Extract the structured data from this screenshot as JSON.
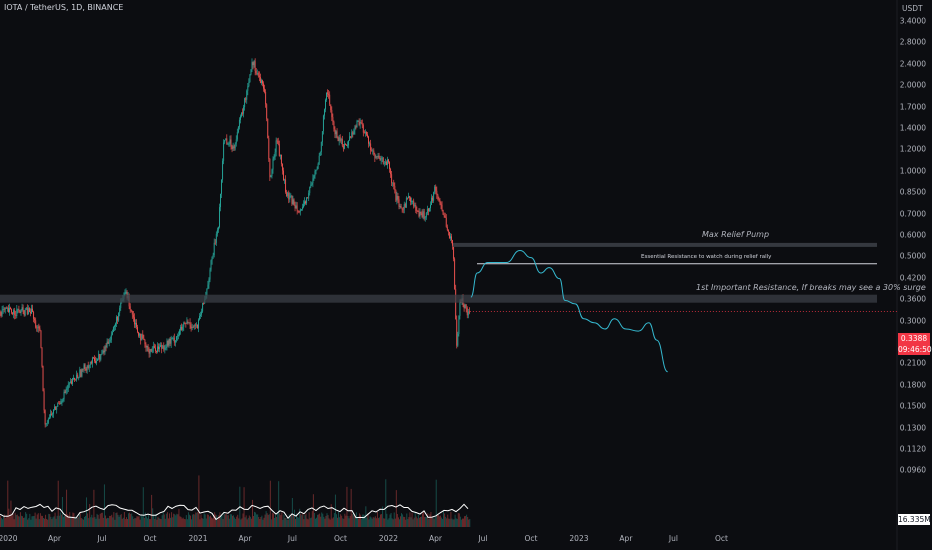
{
  "header": {
    "ticker": "IOTA / TetherUS, 1D, BINANCE"
  },
  "price_axis": {
    "unit": "USDT",
    "ticks": [
      "3.4000",
      "2.8000",
      "2.4000",
      "2.0000",
      "1.7000",
      "1.4000",
      "1.2000",
      "1.0000",
      "0.8500",
      "0.7000",
      "0.6000",
      "0.5000",
      "0.4200",
      "0.3600",
      "0.3000",
      "0.2500",
      "0.2100",
      "0.1800",
      "0.1500",
      "0.1300",
      "0.1120",
      "0.0960"
    ]
  },
  "time_axis": {
    "ticks": [
      "2020",
      "Apr",
      "Jul",
      "Oct",
      "2021",
      "Apr",
      "Jul",
      "Oct",
      "2022",
      "Apr",
      "Jul",
      "Oct",
      "2023",
      "Apr",
      "Jul",
      "Oct"
    ]
  },
  "current_price": {
    "value": "0.3388",
    "countdown": "09:46:50"
  },
  "volume": {
    "value": "16.335M"
  },
  "annotations": {
    "max_relief": "Max Relief Pump",
    "essential": "Essential Resistance to watch during relief rally",
    "first_resistance": "1st Important Resistance, If breaks may see a 30% surge"
  },
  "colors": {
    "background": "#0c0d11",
    "up": "#26a69a",
    "down": "#ef5350",
    "projection": "#35b8cf",
    "badge": "#f23645",
    "volume_ma": "#ffffff"
  },
  "chart_data": {
    "type": "candlestick",
    "scale": "log",
    "xlabel": "",
    "ylabel": "",
    "ylim": [
      0.096,
      3.4
    ],
    "price_path": [
      {
        "x": "2020-02-20",
        "y": 0.32
      },
      {
        "x": "2020-03-05",
        "y": 0.28
      },
      {
        "x": "2020-03-13",
        "y": 0.14
      },
      {
        "x": "2020-04-01",
        "y": 0.155
      },
      {
        "x": "2020-05-01",
        "y": 0.19
      },
      {
        "x": "2020-06-01",
        "y": 0.22
      },
      {
        "x": "2020-07-01",
        "y": 0.24
      },
      {
        "x": "2020-07-25",
        "y": 0.3
      },
      {
        "x": "2020-08-15",
        "y": 0.4
      },
      {
        "x": "2020-09-05",
        "y": 0.3
      },
      {
        "x": "2020-09-25",
        "y": 0.25
      },
      {
        "x": "2020-10-20",
        "y": 0.255
      },
      {
        "x": "2020-11-15",
        "y": 0.27
      },
      {
        "x": "2020-12-10",
        "y": 0.31
      },
      {
        "x": "2020-12-31",
        "y": 0.3
      },
      {
        "x": "2021-01-15",
        "y": 0.38
      },
      {
        "x": "2021-02-10",
        "y": 0.7
      },
      {
        "x": "2021-02-20",
        "y": 1.35
      },
      {
        "x": "2021-03-10",
        "y": 1.25
      },
      {
        "x": "2021-04-01",
        "y": 1.8
      },
      {
        "x": "2021-04-15",
        "y": 2.5
      },
      {
        "x": "2021-05-01",
        "y": 2.1
      },
      {
        "x": "2021-05-10",
        "y": 1.9
      },
      {
        "x": "2021-05-19",
        "y": 0.95
      },
      {
        "x": "2021-06-01",
        "y": 1.35
      },
      {
        "x": "2021-06-20",
        "y": 0.85
      },
      {
        "x": "2021-07-20",
        "y": 0.75
      },
      {
        "x": "2021-08-20",
        "y": 1.1
      },
      {
        "x": "2021-09-05",
        "y": 2.0
      },
      {
        "x": "2021-09-20",
        "y": 1.4
      },
      {
        "x": "2021-10-10",
        "y": 1.25
      },
      {
        "x": "2021-11-05",
        "y": 1.55
      },
      {
        "x": "2021-11-25",
        "y": 1.3
      },
      {
        "x": "2021-12-05",
        "y": 1.15
      },
      {
        "x": "2021-12-31",
        "y": 1.1
      },
      {
        "x": "2022-01-10",
        "y": 0.9
      },
      {
        "x": "2022-01-24",
        "y": 0.75
      },
      {
        "x": "2022-02-10",
        "y": 0.85
      },
      {
        "x": "2022-03-01",
        "y": 0.72
      },
      {
        "x": "2022-03-15",
        "y": 0.74
      },
      {
        "x": "2022-04-01",
        "y": 0.9
      },
      {
        "x": "2022-04-20",
        "y": 0.7
      },
      {
        "x": "2022-05-05",
        "y": 0.55
      },
      {
        "x": "2022-05-12",
        "y": 0.26
      },
      {
        "x": "2022-05-18",
        "y": 0.38
      },
      {
        "x": "2022-06-01",
        "y": 0.34
      },
      {
        "x": "2022-06-06",
        "y": 0.3388
      }
    ],
    "levels": [
      {
        "label": "Max Relief Pump",
        "y": 0.575
      },
      {
        "label": "Essential Resistance to watch during relief rally",
        "y": 0.495
      },
      {
        "label": "1st Important Resistance, If breaks may see a 30% surge",
        "y": 0.375
      }
    ],
    "projection": [
      {
        "x": "2022-06-08",
        "y": 0.38
      },
      {
        "x": "2022-06-20",
        "y": 0.46
      },
      {
        "x": "2022-07-10",
        "y": 0.5
      },
      {
        "x": "2022-08-15",
        "y": 0.5
      },
      {
        "x": "2022-09-10",
        "y": 0.55
      },
      {
        "x": "2022-10-01",
        "y": 0.52
      },
      {
        "x": "2022-10-20",
        "y": 0.46
      },
      {
        "x": "2022-11-05",
        "y": 0.48
      },
      {
        "x": "2022-11-25",
        "y": 0.44
      },
      {
        "x": "2022-12-05",
        "y": 0.37
      },
      {
        "x": "2022-12-25",
        "y": 0.36
      },
      {
        "x": "2023-01-10",
        "y": 0.32
      },
      {
        "x": "2023-01-30",
        "y": 0.31
      },
      {
        "x": "2023-02-20",
        "y": 0.295
      },
      {
        "x": "2023-03-10",
        "y": 0.32
      },
      {
        "x": "2023-04-01",
        "y": 0.295
      },
      {
        "x": "2023-04-25",
        "y": 0.29
      },
      {
        "x": "2023-05-15",
        "y": 0.31
      },
      {
        "x": "2023-05-30",
        "y": 0.27
      },
      {
        "x": "2023-06-20",
        "y": 0.21
      }
    ]
  }
}
